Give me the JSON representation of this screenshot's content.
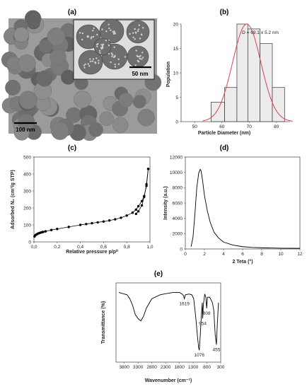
{
  "panel_labels": [
    "(a)",
    "(b)",
    "(c)",
    "(d)",
    "(e)"
  ],
  "tem": {
    "main_scale_label": "100 nm",
    "inset_scale_label": "50 nm"
  },
  "chart_data": [
    {
      "id": "b",
      "type": "bar",
      "title": "",
      "xlabel": "Particle Diameter (nm)",
      "ylabel": "Population",
      "xlim": [
        45,
        85
      ],
      "ylim": [
        0,
        20
      ],
      "xticks": [
        50,
        60,
        70,
        80
      ],
      "yticks": [
        0,
        5,
        10,
        15,
        20
      ],
      "bins": [
        {
          "from": 56,
          "to": 61,
          "count": 4
        },
        {
          "from": 61,
          "to": 65.5,
          "count": 7
        },
        {
          "from": 65.5,
          "to": 69.5,
          "count": 20
        },
        {
          "from": 69.5,
          "to": 74,
          "count": 19
        },
        {
          "from": 74,
          "to": 78.5,
          "count": 16
        },
        {
          "from": 78.5,
          "to": 83,
          "count": 7
        }
      ],
      "fit": {
        "mean": 69.1,
        "sd": 5.2,
        "peak": 20,
        "color": "#e0505a"
      },
      "annotation": "D = 69.1 ± 5.2 nm"
    },
    {
      "id": "c",
      "type": "scatter",
      "title": "",
      "xlabel": "Relative pressure p/p⁰",
      "ylabel": "Adsorbed N₂ (cm³/g STP)",
      "xlim": [
        0,
        1.0
      ],
      "ylim": [
        0,
        500
      ],
      "xticks": [
        0.0,
        0.2,
        0.4,
        0.6,
        0.8,
        1.0
      ],
      "xtick_labels": [
        "0,0",
        "0,2",
        "0,4",
        "0,6",
        "0,8",
        "1,0"
      ],
      "yticks": [
        0,
        100,
        200,
        300,
        400,
        500
      ],
      "adsorption": {
        "x": [
          0.005,
          0.01,
          0.02,
          0.03,
          0.04,
          0.05,
          0.06,
          0.07,
          0.08,
          0.1,
          0.15,
          0.2,
          0.3,
          0.4,
          0.45,
          0.5,
          0.55,
          0.6,
          0.65,
          0.7,
          0.75,
          0.8,
          0.85,
          0.88,
          0.9,
          0.93,
          0.95,
          0.97,
          0.985
        ],
        "y": [
          32,
          38,
          43,
          47,
          50,
          53,
          55,
          57,
          59,
          62,
          70,
          76,
          88,
          100,
          105,
          110,
          115,
          120,
          126,
          133,
          142,
          155,
          172,
          190,
          210,
          240,
          270,
          330,
          430
        ]
      },
      "desorption": {
        "x": [
          0.985,
          0.97,
          0.95,
          0.93,
          0.9,
          0.88
        ],
        "y": [
          430,
          340,
          265,
          215,
          180,
          165
        ]
      }
    },
    {
      "id": "d",
      "type": "line",
      "title": "",
      "xlabel": "2 Teta (°)",
      "ylabel": "Intensity (a.u.)",
      "xlim": [
        0,
        12
      ],
      "ylim": [
        0,
        12000
      ],
      "xticks": [
        0,
        2,
        4,
        6,
        8,
        10,
        12
      ],
      "yticks": [
        0,
        2000,
        4000,
        6000,
        8000,
        10000,
        12000
      ],
      "x": [
        0.6,
        0.8,
        1.0,
        1.2,
        1.4,
        1.55,
        1.65,
        1.8,
        2.0,
        2.3,
        2.6,
        3.0,
        3.5,
        4.0,
        5.0,
        6.0,
        7.0,
        8.0,
        10.0,
        12.0
      ],
      "y": [
        300,
        1500,
        4500,
        8000,
        9900,
        10400,
        10200,
        9000,
        7000,
        5000,
        3500,
        2200,
        1400,
        900,
        500,
        300,
        200,
        150,
        100,
        80
      ]
    },
    {
      "id": "e",
      "type": "line",
      "title": "",
      "xlabel": "Wavenumber (cm⁻¹)",
      "ylabel": "Transmittance (%)",
      "xlim": [
        4100,
        300
      ],
      "ylim": [
        0,
        100
      ],
      "xticks": [
        3800,
        3300,
        2800,
        2300,
        1800,
        1300,
        800,
        300
      ],
      "x": [
        4000,
        3800,
        3700,
        3600,
        3500,
        3400,
        3300,
        3200,
        3100,
        3000,
        2800,
        2500,
        2200,
        2000,
        1800,
        1700,
        1650,
        1619,
        1580,
        1450,
        1350,
        1280,
        1200,
        1150,
        1100,
        1076,
        1040,
        1000,
        970,
        954,
        930,
        880,
        840,
        808,
        780,
        700,
        600,
        550,
        500,
        455,
        420,
        380
      ],
      "y": [
        88,
        86,
        85,
        80,
        72,
        60,
        55,
        52,
        58,
        68,
        80,
        85,
        87,
        88,
        88,
        86,
        84,
        80,
        85,
        86,
        85,
        80,
        55,
        35,
        18,
        15,
        35,
        60,
        75,
        55,
        72,
        86,
        82,
        68,
        82,
        82,
        75,
        65,
        35,
        22,
        50,
        75
      ],
      "peak_labels": [
        {
          "wn": 1619,
          "text": "1619"
        },
        {
          "wn": 1076,
          "text": "1076"
        },
        {
          "wn": 954,
          "text": "954"
        },
        {
          "wn": 808,
          "text": "808"
        },
        {
          "wn": 455,
          "text": "455"
        }
      ]
    }
  ]
}
